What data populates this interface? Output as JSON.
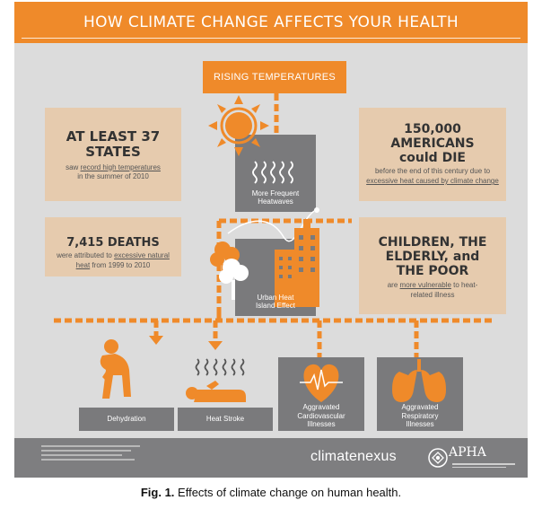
{
  "title": "HOW CLIMATE CHANGE AFFECTS YOUR HEALTH",
  "top_box": "RISING TEMPERATURES",
  "stats": {
    "states": {
      "big": "AT LEAST 37 STATES",
      "pre": "saw ",
      "link": "record high temperatures",
      "post": " in the summer of 2010"
    },
    "deaths": {
      "big": "7,415 DEATHS",
      "pre": "were attributed to ",
      "link": "excessive natural heat",
      "post": " from 1999 to 2010"
    },
    "americans": {
      "big1": "150,000 AMERICANS",
      "big2": "could DIE",
      "pre": "before the end of this century due to ",
      "link": "excessive heat caused by climate change",
      "post": ""
    },
    "vulnerable": {
      "big": "CHILDREN, THE ELDERLY, and THE POOR",
      "pre": "are ",
      "link": "more vulnerable",
      "post": " to heat-related illness"
    }
  },
  "boxes": {
    "heatwaves": "More Frequent Heatwaves",
    "urban": "Urban Heat Island Effect",
    "dehydration": "Dehydration",
    "heatstroke": "Heat Stroke",
    "cardio": "Aggravated Cardiovascular Illnesses",
    "respiratory": "Aggravated Respiratory Illnesses"
  },
  "footer": {
    "logo": "climatenexus",
    "apha": "APHA"
  },
  "caption": {
    "label": "Fig. 1.",
    "text": " Effects of climate change on human health."
  },
  "colors": {
    "orange": "#ef8a2a",
    "tan": "#e6cbae",
    "gray_box": "#7a7a7c",
    "background": "#dcdcdc"
  }
}
